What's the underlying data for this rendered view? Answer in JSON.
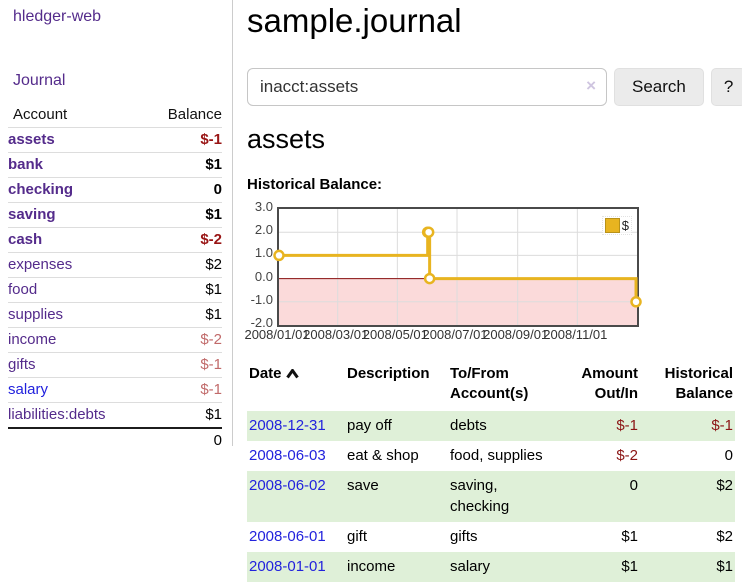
{
  "app": {
    "brand": "hledger-web"
  },
  "sidebar": {
    "journal_link": "Journal",
    "accounts": {
      "headers": [
        "Account",
        "Balance"
      ],
      "rows": [
        {
          "account": "assets",
          "balance": "$-1"
        },
        {
          "account": "bank",
          "balance": "$1"
        },
        {
          "account": "checking",
          "balance": "0"
        },
        {
          "account": "saving",
          "balance": "$1"
        },
        {
          "account": "cash",
          "balance": "$-2"
        },
        {
          "account": "expenses",
          "balance": "$2"
        },
        {
          "account": "food",
          "balance": "$1"
        },
        {
          "account": "supplies",
          "balance": "$1"
        },
        {
          "account": "income",
          "balance": "$-2"
        },
        {
          "account": "gifts",
          "balance": "$-1"
        },
        {
          "account": "salary",
          "balance": "$-1"
        },
        {
          "account": "liabilities:debts",
          "balance": "$1"
        }
      ],
      "total": "0"
    }
  },
  "main": {
    "title": "sample.journal",
    "search": {
      "value": "inacct:assets",
      "clear_icon": "×",
      "button_label": "Search",
      "help_label": "?"
    },
    "account_heading": "assets",
    "chart_label": "Historical Balance:"
  },
  "chart_data": {
    "type": "line",
    "step": true,
    "title": "Historical Balance:",
    "series": [
      {
        "name": "$",
        "points": [
          [
            "2008-01-01",
            1
          ],
          [
            "2008-06-01",
            2
          ],
          [
            "2008-06-02",
            2
          ],
          [
            "2008-06-03",
            0
          ],
          [
            "2008-12-31",
            -1
          ]
        ]
      }
    ],
    "x_ticks": [
      "2008/01/01",
      "2008/03/01",
      "2008/05/01",
      "2008/07/01",
      "2008/09/01",
      "2008/11/01"
    ],
    "y_ticks": [
      "3.0",
      "2.0",
      "1.0",
      "0.0",
      "-1.0",
      "-2.0"
    ],
    "ylim": [
      -2,
      3
    ],
    "x_range": [
      "2008-01-01",
      "2009-01-01"
    ],
    "grid": true,
    "legend_position": "top-right",
    "line_color": "#e8b420",
    "marker_fill": "#ffffff",
    "negative_region_color": "#fbdada",
    "zero_line_color": "#8b1010",
    "grid_color": "#dcdcdc"
  },
  "register": {
    "headers": [
      "Date",
      "Description",
      "To/From Account(s)",
      "Amount Out/In",
      "Historical Balance"
    ],
    "rows": [
      {
        "date": "2008-12-31",
        "description": "pay off",
        "accounts": "debts",
        "amount": "$-1",
        "balance": "$-1"
      },
      {
        "date": "2008-06-03",
        "description": "eat & shop",
        "accounts": "food, supplies",
        "amount": "$-2",
        "balance": "0"
      },
      {
        "date": "2008-06-02",
        "description": "save",
        "accounts": "saving, checking",
        "amount": "0",
        "balance": "$2"
      },
      {
        "date": "2008-06-01",
        "description": "gift",
        "accounts": "gifts",
        "amount": "$1",
        "balance": "$2"
      },
      {
        "date": "2008-01-01",
        "description": "income",
        "accounts": "salary",
        "amount": "$1",
        "balance": "$1"
      }
    ]
  }
}
